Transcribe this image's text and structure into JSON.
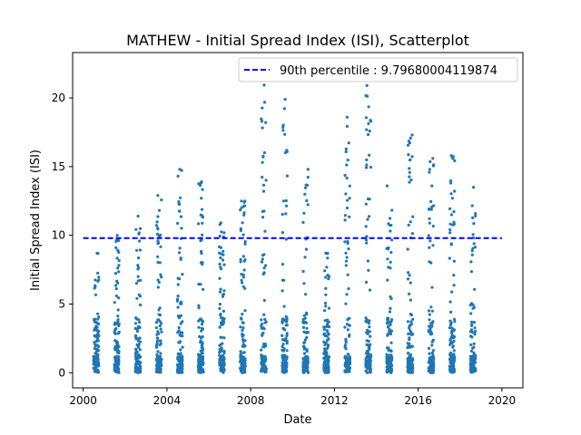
{
  "chart_data": {
    "type": "scatter",
    "title": "MATHEW - Initial Spread Index (ISI), Scatterplot",
    "xlabel": "Date",
    "ylabel": "Initial Spread Index (ISI)",
    "xlim": [
      "1999-07-01",
      "2021-01-01"
    ],
    "ylim": [
      -1.1,
      23.3
    ],
    "x_ticks": [
      "2000",
      "2004",
      "2008",
      "2012",
      "2016",
      "2020"
    ],
    "y_ticks": [
      "0",
      "5",
      "10",
      "15",
      "20"
    ],
    "grid": false,
    "legend": {
      "placement": "upper right",
      "label": "90th percentile : 9.79680004119874"
    },
    "percentile_line": {
      "value": 9.79680004119874,
      "color": "#0000ff",
      "style": "dashed"
    },
    "marker_color": "#1f77b4",
    "seasons": [
      {
        "year": 2000,
        "max": 8.7,
        "points": [
          "2000-07-01",
          "2000-08-15",
          "2000-09-30"
        ]
      },
      {
        "year": 2001,
        "max": 10.0,
        "points": [
          "2001-07-01",
          "2001-08-10",
          "2001-09-20"
        ]
      },
      {
        "year": 2002,
        "max": 11.4,
        "points": [
          "2002-07-01",
          "2002-08-15",
          "2002-09-30"
        ]
      },
      {
        "year": 2003,
        "max": 12.9,
        "points": [
          "2003-07-01",
          "2003-08-15",
          "2003-09-30"
        ]
      },
      {
        "year": 2004,
        "max": 14.8,
        "points": [
          "2004-07-01",
          "2004-08-15",
          "2004-09-30"
        ]
      },
      {
        "year": 2005,
        "max": 13.9,
        "points": [
          "2005-07-01",
          "2005-08-15",
          "2005-09-30"
        ]
      },
      {
        "year": 2006,
        "max": 10.9,
        "points": [
          "2006-07-01",
          "2006-08-15",
          "2006-09-30"
        ]
      },
      {
        "year": 2007,
        "max": 12.5,
        "points": [
          "2007-07-01",
          "2007-08-15",
          "2007-09-30"
        ]
      },
      {
        "year": 2008,
        "max": 21.6,
        "points": [
          "2008-07-01",
          "2008-08-15",
          "2008-09-30"
        ]
      },
      {
        "year": 2009,
        "max": 19.9,
        "points": [
          "2009-07-01",
          "2009-08-15",
          "2009-09-30"
        ]
      },
      {
        "year": 2010,
        "max": 14.8,
        "points": [
          "2010-07-01",
          "2010-08-15",
          "2010-09-30"
        ]
      },
      {
        "year": 2011,
        "max": 8.7,
        "points": [
          "2011-07-01",
          "2011-08-15",
          "2011-09-30"
        ]
      },
      {
        "year": 2012,
        "max": 18.6,
        "points": [
          "2012-07-01",
          "2012-08-15",
          "2012-09-30"
        ]
      },
      {
        "year": 2013,
        "max": 20.9,
        "points": [
          "2013-07-01",
          "2013-08-15",
          "2013-09-30"
        ]
      },
      {
        "year": 2014,
        "max": 13.6,
        "points": [
          "2014-07-01",
          "2014-08-15",
          "2014-09-30"
        ]
      },
      {
        "year": 2015,
        "max": 17.3,
        "points": [
          "2015-07-01",
          "2015-08-15",
          "2015-09-30"
        ]
      },
      {
        "year": 2016,
        "max": 15.6,
        "points": [
          "2016-07-01",
          "2016-08-15",
          "2016-09-30"
        ]
      },
      {
        "year": 2017,
        "max": 15.8,
        "points": [
          "2017-07-01",
          "2017-08-15",
          "2017-09-30"
        ]
      },
      {
        "year": 2018,
        "max": 13.5,
        "points": [
          "2018-07-01",
          "2018-08-15",
          "2018-09-30"
        ]
      }
    ]
  }
}
